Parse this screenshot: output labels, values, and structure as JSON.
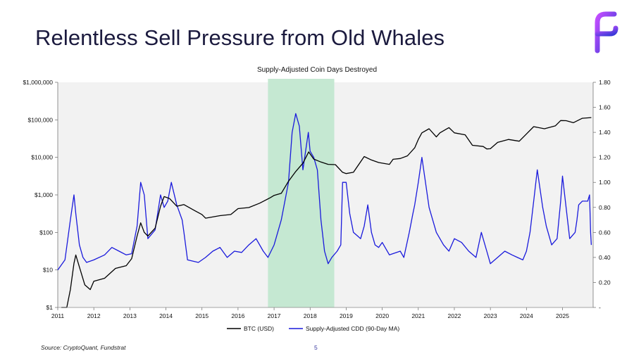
{
  "slide": {
    "title": "Relentless Sell Pressure from Old Whales",
    "source": "Source: CryptoQuant, Fundstrat",
    "page_number": "5",
    "logo_icon": "fundstrat-f-logo-icon"
  },
  "colors": {
    "btc": "#000000",
    "cdd": "#1a1adc",
    "highlight": "#c5e8d2",
    "plot_bg": "#f2f2f2",
    "title": "#1b1a3e"
  },
  "chart_data": {
    "type": "line",
    "title": "Supply-Adjusted Coin Days Destroyed",
    "x_ticks": [
      "2011",
      "2012",
      "2013",
      "2014",
      "2015",
      "2016",
      "2017",
      "2018",
      "2019",
      "2020",
      "2021",
      "2022",
      "2023",
      "2024",
      "2025"
    ],
    "x_range": [
      2011.0,
      2025.85
    ],
    "y_left": {
      "scale": "log",
      "range": [
        1,
        1000000
      ],
      "ticks": [
        1,
        10,
        100,
        1000,
        10000,
        100000,
        1000000
      ],
      "tick_labels": [
        "$1",
        "$10",
        "$100",
        "$1,000",
        "$10,000",
        "$100,000",
        "$1,000,000"
      ]
    },
    "y_right": {
      "scale": "linear",
      "range": [
        0,
        1.8
      ],
      "ticks": [
        0,
        0.2,
        0.4,
        0.6,
        0.8,
        1.0,
        1.2,
        1.4,
        1.6,
        1.8
      ],
      "tick_labels": [
        "-",
        "0.20",
        "0.40",
        "0.60",
        "0.80",
        "1.00",
        "1.20",
        "1.40",
        "1.60",
        "1.80"
      ]
    },
    "highlight_range": [
      2016.83,
      2018.67
    ],
    "legend": [
      "BTC (USD)",
      "Supply-Adjusted CDD (90-Day MA)"
    ],
    "series": [
      {
        "name": "BTC (USD)",
        "axis": "left",
        "x": [
          2011.1,
          2011.25,
          2011.35,
          2011.45,
          2011.5,
          2011.6,
          2011.75,
          2011.9,
          2012.0,
          2012.3,
          2012.6,
          2012.9,
          2013.05,
          2013.2,
          2013.3,
          2013.4,
          2013.5,
          2013.7,
          2013.85,
          2013.95,
          2014.1,
          2014.3,
          2014.5,
          2014.8,
          2015.0,
          2015.1,
          2015.5,
          2015.8,
          2016.0,
          2016.3,
          2016.6,
          2016.9,
          2017.0,
          2017.2,
          2017.4,
          2017.6,
          2017.8,
          2017.96,
          2018.1,
          2018.3,
          2018.5,
          2018.7,
          2018.9,
          2019.0,
          2019.2,
          2019.5,
          2019.7,
          2019.9,
          2020.2,
          2020.3,
          2020.5,
          2020.7,
          2020.9,
          2021.0,
          2021.1,
          2021.3,
          2021.5,
          2021.6,
          2021.85,
          2022.0,
          2022.3,
          2022.5,
          2022.8,
          2022.9,
          2023.0,
          2023.2,
          2023.5,
          2023.8,
          2024.0,
          2024.2,
          2024.5,
          2024.8,
          2024.95,
          2025.1,
          2025.3,
          2025.55,
          2025.8
        ],
        "values": [
          0.8,
          1,
          3,
          15,
          25,
          12,
          4,
          3,
          5,
          6,
          11,
          13,
          20,
          80,
          180,
          100,
          80,
          130,
          500,
          900,
          800,
          500,
          550,
          380,
          300,
          240,
          280,
          300,
          430,
          460,
          600,
          850,
          970,
          1100,
          2300,
          4200,
          7000,
          14000,
          9000,
          7500,
          6500,
          6400,
          4000,
          3700,
          4000,
          10500,
          8500,
          7300,
          6500,
          8900,
          9300,
          11000,
          18000,
          30000,
          45000,
          58000,
          35000,
          45000,
          62000,
          45000,
          40000,
          21000,
          19500,
          16800,
          17000,
          25000,
          30000,
          27000,
          42000,
          66000,
          58000,
          69000,
          96000,
          95000,
          84000,
          110000,
          115000
        ]
      },
      {
        "name": "Supply-Adjusted CDD (90-Day MA)",
        "axis": "right",
        "x": [
          2011.0,
          2011.2,
          2011.35,
          2011.45,
          2011.5,
          2011.6,
          2011.7,
          2011.8,
          2012.0,
          2012.3,
          2012.5,
          2012.7,
          2012.9,
          2013.05,
          2013.2,
          2013.3,
          2013.4,
          2013.5,
          2013.7,
          2013.85,
          2013.95,
          2014.05,
          2014.15,
          2014.3,
          2014.45,
          2014.5,
          2014.6,
          2014.9,
          2015.1,
          2015.3,
          2015.5,
          2015.7,
          2015.9,
          2016.1,
          2016.3,
          2016.5,
          2016.7,
          2016.83,
          2017.0,
          2017.2,
          2017.4,
          2017.5,
          2017.6,
          2017.7,
          2017.8,
          2017.9,
          2017.95,
          2018.0,
          2018.1,
          2018.2,
          2018.3,
          2018.4,
          2018.5,
          2018.6,
          2018.75,
          2018.85,
          2018.9,
          2019.0,
          2019.1,
          2019.2,
          2019.4,
          2019.5,
          2019.6,
          2019.7,
          2019.8,
          2019.9,
          2020.0,
          2020.2,
          2020.5,
          2020.6,
          2020.75,
          2020.85,
          2020.9,
          2021.0,
          2021.1,
          2021.2,
          2021.3,
          2021.5,
          2021.7,
          2021.85,
          2022.0,
          2022.2,
          2022.4,
          2022.6,
          2022.75,
          2022.9,
          2023.0,
          2023.2,
          2023.4,
          2023.6,
          2023.75,
          2023.9,
          2024.0,
          2024.1,
          2024.2,
          2024.3,
          2024.45,
          2024.55,
          2024.7,
          2024.85,
          2024.95,
          2025.0,
          2025.1,
          2025.2,
          2025.35,
          2025.4,
          2025.45,
          2025.55,
          2025.7,
          2025.75,
          2025.78,
          2025.8
        ],
        "values": [
          0.3,
          0.38,
          0.7,
          0.9,
          0.75,
          0.5,
          0.4,
          0.36,
          0.38,
          0.42,
          0.48,
          0.45,
          0.42,
          0.43,
          0.65,
          1.0,
          0.9,
          0.55,
          0.62,
          0.9,
          0.8,
          0.85,
          1.0,
          0.82,
          0.7,
          0.6,
          0.38,
          0.36,
          0.4,
          0.45,
          0.48,
          0.4,
          0.45,
          0.44,
          0.5,
          0.55,
          0.45,
          0.4,
          0.5,
          0.7,
          1.0,
          1.4,
          1.55,
          1.45,
          1.1,
          1.3,
          1.4,
          1.25,
          1.2,
          1.1,
          0.7,
          0.45,
          0.35,
          0.4,
          0.45,
          0.5,
          1.0,
          1.0,
          0.75,
          0.6,
          0.55,
          0.65,
          0.82,
          0.6,
          0.5,
          0.48,
          0.52,
          0.42,
          0.45,
          0.4,
          0.6,
          0.75,
          0.82,
          1.0,
          1.2,
          1.0,
          0.8,
          0.6,
          0.5,
          0.45,
          0.55,
          0.52,
          0.45,
          0.4,
          0.6,
          0.45,
          0.35,
          0.4,
          0.45,
          0.42,
          0.4,
          0.38,
          0.45,
          0.6,
          0.85,
          1.1,
          0.8,
          0.65,
          0.5,
          0.55,
          0.85,
          1.05,
          0.8,
          0.55,
          0.6,
          0.7,
          0.82,
          0.85,
          0.85,
          0.9,
          0.6,
          0.5
        ]
      }
    ]
  }
}
